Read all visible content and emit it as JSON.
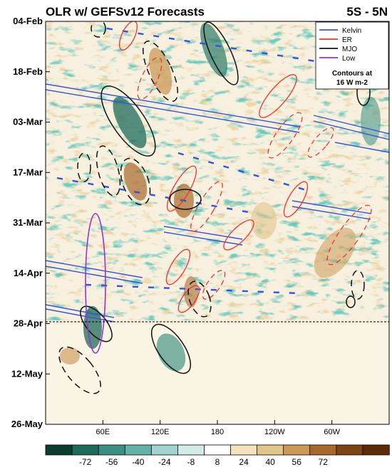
{
  "chart_data": {
    "type": "heatmap",
    "title": "OLR w/ GEFSv12 Forecasts",
    "subtitle": "5S - 5N",
    "xlabel": "",
    "ylabel": "",
    "x_ticks": [
      {
        "lon": 60,
        "label": "60E"
      },
      {
        "lon": 120,
        "label": "120E"
      },
      {
        "lon": 180,
        "label": "180"
      },
      {
        "lon": 240,
        "label": "120W"
      },
      {
        "lon": 300,
        "label": "60W"
      }
    ],
    "xlim": [
      0,
      360
    ],
    "y_ticks": [
      "04-Feb",
      "18-Feb",
      "03-Mar",
      "17-Mar",
      "31-Mar",
      "14-Apr",
      "28-Apr",
      "12-May",
      "26-May"
    ],
    "ylim": [
      "04-Feb",
      "26-May"
    ],
    "forecast_start": "28-Apr",
    "legend_position": "top-right",
    "legend": [
      {
        "name": "Kelvin",
        "color": "#3355dd"
      },
      {
        "name": "ER",
        "color": "#ee3333"
      },
      {
        "name": "MJO",
        "color": "#111111"
      },
      {
        "name": "Low",
        "color": "#9933cc"
      }
    ],
    "legend_note_1": "Contours at",
    "legend_note_2": "16 W m-2",
    "colorbar": {
      "ticks": [
        -72,
        -56,
        -40,
        -24,
        -8,
        8,
        24,
        40,
        56,
        72
      ],
      "colors": [
        "#0b3d30",
        "#1f6b5a",
        "#3b8f80",
        "#65b0a7",
        "#9fd3cc",
        "#d1ebe7",
        "#ffffff",
        "#f2e3bc",
        "#e2c58a",
        "#cb9a57",
        "#a86a2c",
        "#7d4414",
        "#5a2c08"
      ]
    }
  }
}
